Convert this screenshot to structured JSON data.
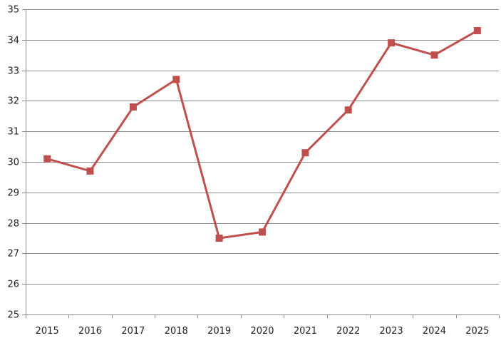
{
  "chart_data": {
    "type": "line",
    "title": "",
    "xlabel": "",
    "ylabel": "",
    "categories": [
      "2015",
      "2016",
      "2017",
      "2018",
      "2019",
      "2020",
      "2021",
      "2022",
      "2023",
      "2024",
      "2025"
    ],
    "series": [
      {
        "values": [
          30.1,
          29.7,
          31.8,
          32.7,
          27.5,
          27.7,
          30.3,
          31.7,
          33.9,
          33.5,
          34.3
        ],
        "color": "#c0504d",
        "marker": "square"
      }
    ],
    "ylim": [
      25,
      35
    ],
    "yticks": [
      25,
      26,
      27,
      28,
      29,
      30,
      31,
      32,
      33,
      34,
      35
    ],
    "grid": true,
    "gridline_color": "#8c8c8c",
    "axis_color": "#8c8c8c",
    "legend": "none"
  }
}
